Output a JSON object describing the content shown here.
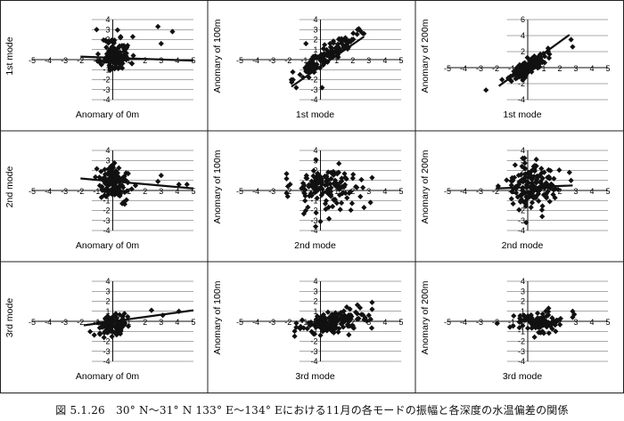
{
  "caption": "図 5.1.26　30° N～31° N 133° E～134° Eにおける11月の各モードの振幅と各深度の水温偏差の関係",
  "common_axis": {
    "x_ticks": [
      "-5",
      "-4",
      "-3",
      "-2",
      "-1",
      "0",
      "1",
      "2",
      "3",
      "4",
      "5"
    ],
    "y_ticks": [
      "-4",
      "-3",
      "-2",
      "-1",
      "0",
      "1",
      "2",
      "3",
      "4"
    ],
    "y_ticks_200m_1st": [
      "-4",
      "-2",
      "0",
      "2",
      "4",
      "6"
    ]
  },
  "chart_data": [
    {
      "type": "scatter",
      "row": 0,
      "col": 0,
      "xlabel": "Anomary of 0m",
      "ylabel": "1st mode",
      "xlim": [
        -5,
        5
      ],
      "ylim": [
        -4,
        4
      ],
      "trend": [
        [
          -2,
          0.3
        ],
        [
          5,
          -0.1
        ]
      ],
      "seed": 11,
      "n": 120,
      "cx": 0.2,
      "cy": 0.5,
      "sx": 0.45,
      "sy": 0.9,
      "corr": 0.0,
      "xmin": -1.6,
      "xmax": 2.6,
      "extra": [
        [
          2.8,
          3.3
        ],
        [
          3.7,
          2.8
        ],
        [
          3.0,
          1.6
        ],
        [
          -1.0,
          3.0
        ]
      ]
    },
    {
      "type": "scatter",
      "row": 0,
      "col": 1,
      "xlabel": "1st mode",
      "ylabel": "Anomary of 100m",
      "xlim": [
        -5,
        5
      ],
      "ylim": [
        -4,
        4
      ],
      "trend": [
        [
          -1.8,
          -2.7
        ],
        [
          2.7,
          2.3
        ]
      ],
      "seed": 23,
      "n": 130,
      "cx": 0.3,
      "cy": 0.3,
      "sx": 0.95,
      "sy": 0.4,
      "corr": 1.05,
      "xmin": -1.8,
      "xmax": 3.1,
      "extra": [
        [
          2.3,
          3.0
        ],
        [
          -1.5,
          -2.8
        ],
        [
          0.1,
          -2.8
        ],
        [
          -0.9,
          1.6
        ]
      ]
    },
    {
      "type": "scatter",
      "row": 0,
      "col": 2,
      "xlabel": "1st mode",
      "ylabel": "Anomary of 200m",
      "xlim": [
        -5,
        5
      ],
      "ylim": [
        -4,
        6
      ],
      "trend": [
        [
          -1.8,
          -2.3
        ],
        [
          2.6,
          4.1
        ]
      ],
      "seed": 37,
      "n": 130,
      "cx": 0.1,
      "cy": 0.2,
      "sx": 0.55,
      "sy": 0.5,
      "corr": 1.35,
      "xmin": -2.2,
      "xmax": 2.8,
      "extra": [
        [
          2.7,
          3.5
        ],
        [
          2.8,
          2.6
        ],
        [
          -2.6,
          -2.8
        ],
        [
          -1.6,
          -1.5
        ]
      ]
    },
    {
      "type": "scatter",
      "row": 1,
      "col": 0,
      "xlabel": "Anomary of 0m",
      "ylabel": "2nd mode",
      "xlim": [
        -5,
        5
      ],
      "ylim": [
        -4,
        4
      ],
      "trend": [
        [
          -2,
          1.2
        ],
        [
          5,
          0.2
        ]
      ],
      "seed": 41,
      "n": 130,
      "cx": 0.1,
      "cy": 0.8,
      "sx": 0.5,
      "sy": 0.8,
      "corr": -0.2,
      "xmin": -1.6,
      "xmax": 2.8,
      "extra": [
        [
          2.8,
          0.9
        ],
        [
          4.1,
          0.6
        ],
        [
          4.6,
          0.6
        ],
        [
          3.0,
          1.5
        ]
      ]
    },
    {
      "type": "scatter",
      "row": 1,
      "col": 1,
      "xlabel": "2nd mode",
      "ylabel": "Anomary of 100m",
      "xlim": [
        -5,
        5
      ],
      "ylim": [
        -4,
        4
      ],
      "trend": [],
      "seed": 53,
      "n": 150,
      "cx": 0.4,
      "cy": 0.3,
      "sx": 1.1,
      "sy": 1.1,
      "corr": 0.0,
      "xmin": -2.1,
      "xmax": 3.2,
      "extra": [
        [
          0.0,
          -3.1
        ],
        [
          -0.3,
          -3.6
        ],
        [
          2.7,
          -1.7
        ],
        [
          3.1,
          -1.2
        ]
      ]
    },
    {
      "type": "scatter",
      "row": 1,
      "col": 2,
      "xlabel": "2nd mode",
      "ylabel": "Anomary of 200m",
      "xlim": [
        -5,
        5
      ],
      "ylim": [
        -4,
        4
      ],
      "trend": [
        [
          -2,
          0.2
        ],
        [
          2.8,
          0.5
        ]
      ],
      "seed": 67,
      "n": 150,
      "cx": 0.2,
      "cy": 0.3,
      "sx": 0.7,
      "sy": 1.1,
      "corr": 0.0,
      "xmin": -2.0,
      "xmax": 2.8,
      "extra": [
        [
          2.6,
          1.8
        ],
        [
          2.7,
          1.0
        ],
        [
          -0.1,
          -3.2
        ],
        [
          0.9,
          -2.6
        ]
      ]
    },
    {
      "type": "scatter",
      "row": 2,
      "col": 0,
      "xlabel": "Anomary of 0m",
      "ylabel": "3rd mode",
      "xlim": [
        -5,
        5
      ],
      "ylim": [
        -4,
        4
      ],
      "trend": [
        [
          -1.8,
          -0.4
        ],
        [
          5,
          1.1
        ]
      ],
      "seed": 79,
      "n": 110,
      "cx": 0.0,
      "cy": -0.3,
      "sx": 0.45,
      "sy": 0.5,
      "corr": 0.15,
      "xmin": -1.5,
      "xmax": 2.6,
      "extra": [
        [
          3.1,
          0.6
        ],
        [
          4.1,
          1.0
        ],
        [
          2.4,
          1.1
        ],
        [
          -0.8,
          -1.2
        ]
      ]
    },
    {
      "type": "scatter",
      "row": 2,
      "col": 1,
      "xlabel": "3rd mode",
      "ylabel": "Anomary of 100m",
      "xlim": [
        -5,
        5
      ],
      "ylim": [
        -4,
        4
      ],
      "trend": [],
      "seed": 83,
      "n": 150,
      "cx": 0.8,
      "cy": -0.1,
      "sx": 1.0,
      "sy": 0.55,
      "corr": 0.25,
      "xmin": -1.6,
      "xmax": 3.2,
      "extra": [
        [
          3.2,
          1.2
        ],
        [
          3.0,
          0.6
        ],
        [
          -1.5,
          -0.6
        ],
        [
          0.0,
          -1.4
        ]
      ]
    },
    {
      "type": "scatter",
      "row": 2,
      "col": 2,
      "xlabel": "3rd mode",
      "ylabel": "Anomary of 200m",
      "xlim": [
        -5,
        5
      ],
      "ylim": [
        -4,
        4
      ],
      "trend": [],
      "seed": 97,
      "n": 120,
      "cx": 0.5,
      "cy": -0.1,
      "sx": 0.8,
      "sy": 0.5,
      "corr": 0.05,
      "xmin": -2.1,
      "xmax": 2.9,
      "extra": [
        [
          2.8,
          1.0
        ],
        [
          2.8,
          0.4
        ],
        [
          -1.9,
          -0.2
        ],
        [
          1.3,
          1.3
        ]
      ]
    }
  ]
}
